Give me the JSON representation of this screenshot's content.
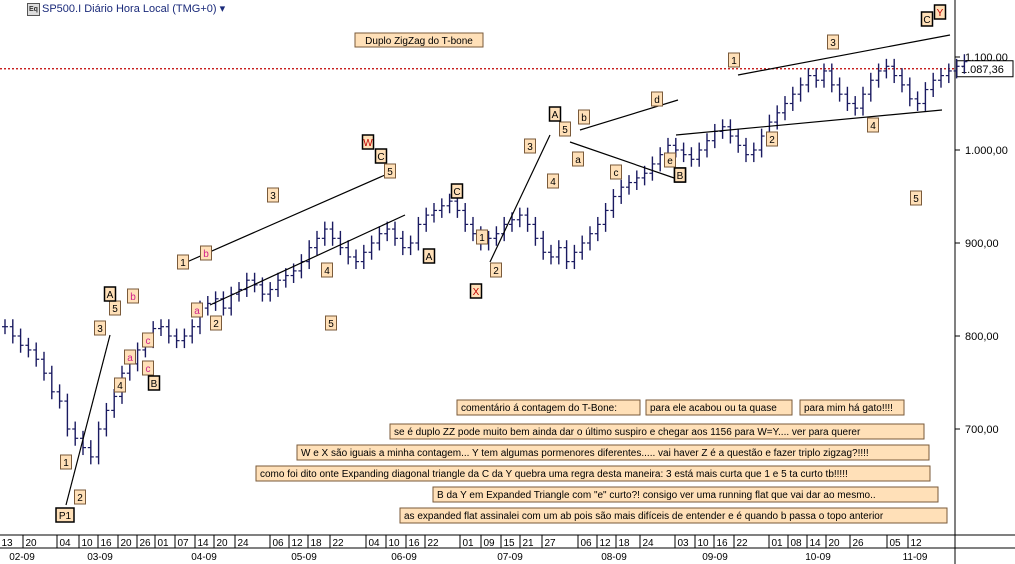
{
  "header": {
    "icon_label": "Eq",
    "title": "SP500.I Diário Hora Local (TMG+0)",
    "dropdown": "▾"
  },
  "colors": {
    "bars": "#1a1a60",
    "annot_fill": "#ffe0b8",
    "annot_border": "#7a5a3a",
    "current_line": "#c00000",
    "grid": "#dddddd",
    "axis": "#000000"
  },
  "chart_data": {
    "type": "ohlc",
    "title": "Duplo ZigZag do T-bone",
    "current_price": "1.087,36",
    "y_ticks": [
      "1.100,00",
      "1.000,00",
      "900,00",
      "800,00",
      "700,00"
    ],
    "x_day_ticks": [
      "13",
      "20",
      "04",
      "10",
      "16",
      "20",
      "26",
      "01",
      "07",
      "14",
      "20",
      "24",
      "06",
      "12",
      "18",
      "22",
      "04",
      "10",
      "16",
      "22",
      "01",
      "09",
      "15",
      "21",
      "27",
      "06",
      "12",
      "18",
      "24",
      "03",
      "10",
      "16",
      "22",
      "01",
      "08",
      "14",
      "20",
      "26",
      "05",
      "12"
    ],
    "x_month_ticks": [
      "02-09",
      "03-09",
      "04-09",
      "05-09",
      "06-09",
      "07-09",
      "08-09",
      "09-09",
      "10-09",
      "11-09"
    ],
    "series": [
      {
        "closes": [
          810,
          800,
          790,
          785,
          775,
          760,
          740,
          730,
          700,
          690,
          680,
          670,
          700,
          720,
          735,
          760,
          770,
          785,
          795,
          808,
          810,
          800,
          795,
          800,
          810,
          830,
          835,
          840,
          830,
          845,
          850,
          860,
          855,
          845,
          850,
          860,
          865,
          870,
          880,
          895,
          905,
          915,
          905,
          895,
          885,
          880,
          890,
          900,
          910,
          915,
          905,
          895,
          900,
          920,
          930,
          935,
          940,
          945,
          935,
          920,
          910,
          900,
          905,
          910,
          920,
          925,
          930,
          920,
          905,
          890,
          885,
          895,
          880,
          890,
          900,
          910,
          920,
          935,
          950,
          960,
          965,
          970,
          975,
          985,
          995,
          1005,
          1000,
          995,
          990,
          1000,
          1010,
          1020,
          1025,
          1015,
          1005,
          995,
          1000,
          1015,
          1030,
          1040,
          1050,
          1060,
          1070,
          1080,
          1075,
          1085,
          1070,
          1060,
          1050,
          1045,
          1060,
          1075,
          1085,
          1090,
          1080,
          1070,
          1055,
          1050,
          1065,
          1075,
          1080,
          1085,
          1090,
          1095
        ]
      }
    ],
    "wave_labels": [
      "P1",
      "1",
      "2",
      "3",
      "4",
      "5",
      "a",
      "b",
      "c",
      "A",
      "B",
      "W",
      "X",
      "Y",
      "C",
      "d",
      "e"
    ],
    "annotations_title": "Duplo ZigZag do T-bone",
    "comments": [
      "comentário á contagem do T-Bone:",
      "para ele acabou ou ta quase",
      "para mim há gato!!!!",
      "se é duplo ZZ pode muito bem ainda dar o último suspiro e chegar aos 1156 para W=Y.... ver para querer",
      "W e X são iguais a minha contagem... Y tem algumas pormenores diferentes..... vai haver Z é a questão e fazer triplo zigzag?!!!!",
      "como foi dito onte Expanding diagonal triangle da C da Y quebra uma regra desta maneira: 3 está mais curta que 1 e 5 ta curto tb!!!!!",
      "B da Y em Expanded Triangle com \"e\" curto?! consigo ver uma running flat que vai dar ao mesmo..",
      "as expanded flat assinalei com um ab pois são mais difíceis de entender e é quando b passa o topo anterior"
    ],
    "chart_wave_text": [
      "P1",
      "1",
      "2",
      "3",
      "4",
      "5",
      "a",
      "b",
      "c",
      "A",
      "B",
      "1",
      "2",
      "3",
      "4",
      "5",
      "a",
      "b",
      "c",
      "W",
      "C",
      "5",
      "A",
      "C",
      "X",
      "1",
      "2",
      "3",
      "4",
      "5",
      "A",
      "B",
      "a",
      "b",
      "c",
      "d",
      "e",
      "B",
      "1",
      "2",
      "3",
      "4",
      "5",
      "C",
      "Y"
    ]
  }
}
